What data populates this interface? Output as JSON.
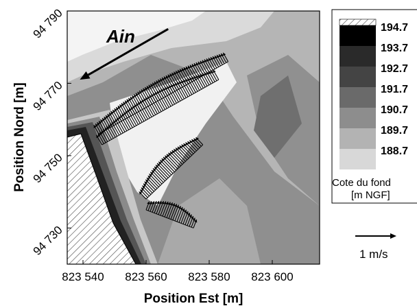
{
  "chart_data": {
    "type": "heatmap",
    "title": "",
    "xlabel": "Position Est [m]",
    "ylabel": "Position Nord [m]",
    "xlim": [
      823535,
      823615
    ],
    "ylim": [
      94720,
      94790
    ],
    "x_ticks": [
      {
        "value": 823540,
        "label": "823 540"
      },
      {
        "value": 823560,
        "label": "823 560"
      },
      {
        "value": 823580,
        "label": "823 580"
      },
      {
        "value": 823600,
        "label": "823 600"
      }
    ],
    "y_ticks": [
      {
        "value": 94730,
        "label": "94 730"
      },
      {
        "value": 94750,
        "label": "94 750"
      },
      {
        "value": 94770,
        "label": "94 770"
      },
      {
        "value": 94790,
        "label": "94 790"
      }
    ],
    "annotation": "Ain",
    "flow_arrow": {
      "from": [
        823567,
        94785
      ],
      "to": [
        823539,
        94771
      ]
    },
    "legend": {
      "title_line1": "Cote du fond",
      "title_line2": "[m NGF]",
      "levels": [
        {
          "label": "194.7",
          "color": "#000000"
        },
        {
          "label": "193.7",
          "color": "#2a2a2a"
        },
        {
          "label": "192.7",
          "color": "#444444"
        },
        {
          "label": "191.7",
          "color": "#6a6a6a"
        },
        {
          "label": "190.7",
          "color": "#8d8d8d"
        },
        {
          "label": "189.7",
          "color": "#b3b3b3"
        },
        {
          "label": "188.7",
          "color": "#d8d8d8"
        }
      ],
      "top_hatched": true
    },
    "velocity_scale_label": "1 m/s",
    "velocity_transects": [
      {
        "from": [
          823545,
          94756
        ],
        "to": [
          823586,
          94776
        ],
        "speed": 0.45
      },
      {
        "from": [
          823546,
          94753
        ],
        "to": [
          823583,
          94771
        ],
        "speed": 0.5
      },
      {
        "from": [
          823560,
          94738
        ],
        "to": [
          823578,
          94753
        ],
        "speed": 0.45
      },
      {
        "from": [
          823560,
          94735
        ],
        "to": [
          823575,
          94730
        ],
        "speed": 0.4
      }
    ]
  }
}
